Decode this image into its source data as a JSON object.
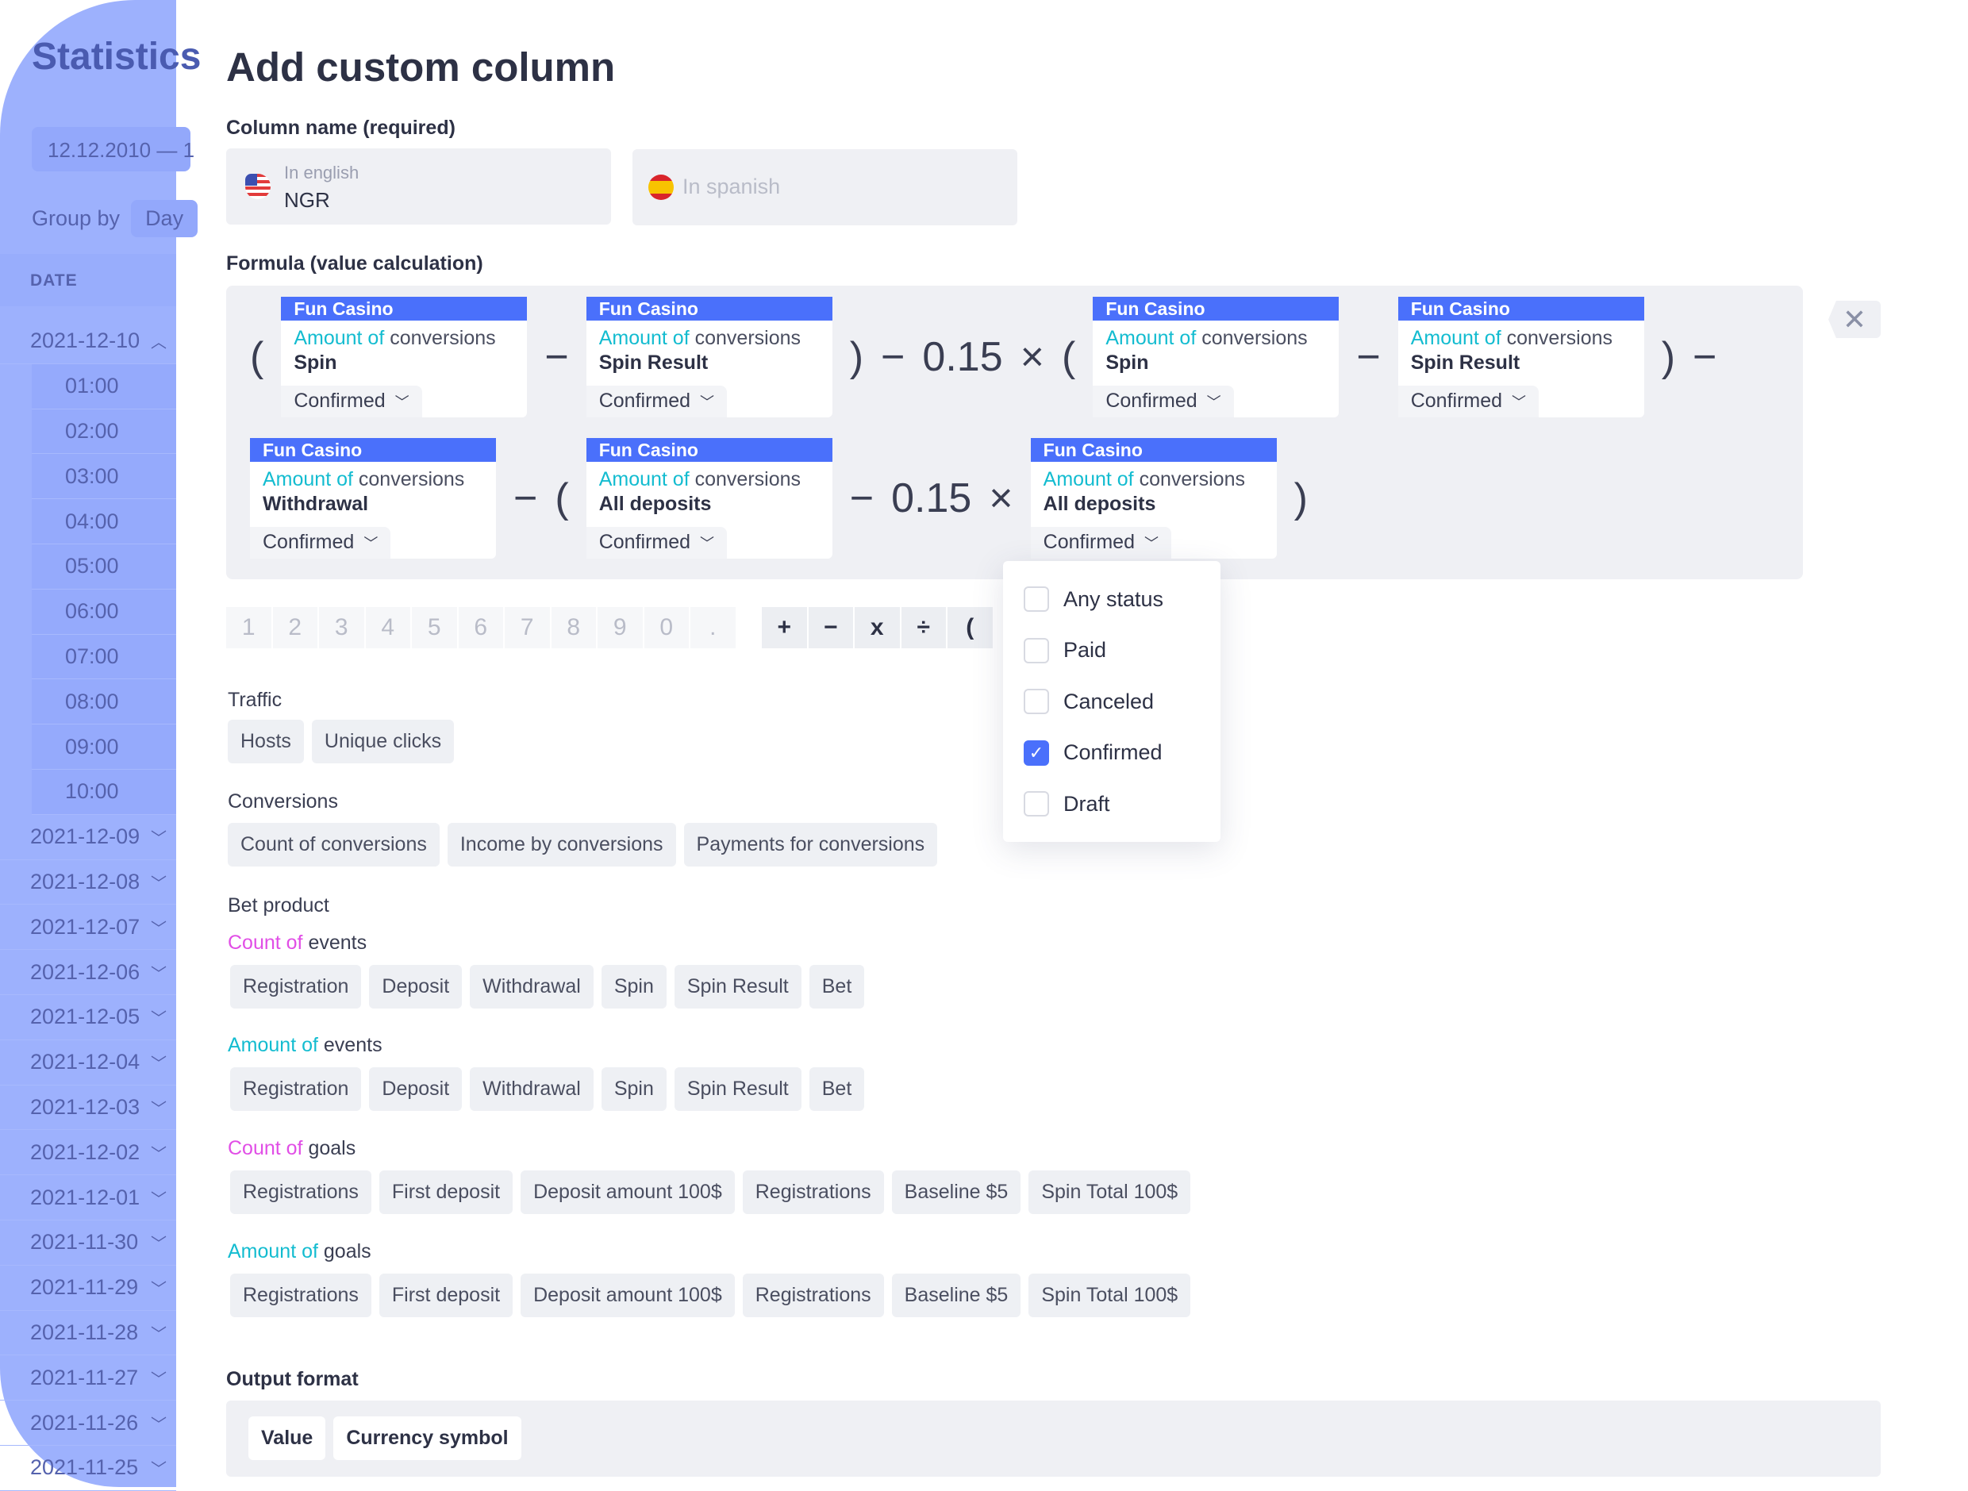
{
  "sidebar": {
    "title": "Statistics",
    "date_range": "12.12.2010 — 1",
    "group_by_label": "Group by",
    "group_by_value": "Day",
    "date_header": "DATE",
    "expanded_date": "2021-12-10",
    "hours": [
      "01:00",
      "02:00",
      "03:00",
      "04:00",
      "05:00",
      "06:00",
      "07:00",
      "08:00",
      "09:00",
      "10:00"
    ],
    "dates": [
      "2021-12-09",
      "2021-12-08",
      "2021-12-07",
      "2021-12-06",
      "2021-12-05",
      "2021-12-04",
      "2021-12-03",
      "2021-12-02",
      "2021-12-01",
      "2021-11-30",
      "2021-11-29",
      "2021-11-28",
      "2021-11-27",
      "2021-11-26",
      "2021-11-25"
    ]
  },
  "dialog": {
    "title": "Add custom column",
    "column_name_label": "Column name (required)",
    "english": {
      "label": "In english",
      "value": "NGR"
    },
    "spanish": {
      "placeholder": "In spanish"
    },
    "formula_label": "Formula (value calculation)",
    "formula_rows": [
      [
        {
          "op": "("
        },
        {
          "card": {
            "source": "Fun Casino",
            "prefix": "Amount of",
            "metric": "conversions",
            "item": "Spin",
            "status": "Confirmed"
          }
        },
        {
          "op": "−"
        },
        {
          "card": {
            "source": "Fun Casino",
            "prefix": "Amount of",
            "metric": "conversions",
            "item": "Spin Result",
            "status": "Confirmed"
          }
        },
        {
          "op": ")"
        },
        {
          "op": "−"
        },
        {
          "op": "0.15"
        },
        {
          "op": "×"
        },
        {
          "op": "("
        },
        {
          "card": {
            "source": "Fun Casino",
            "prefix": "Amount of",
            "metric": "conversions",
            "item": "Spin",
            "status": "Confirmed"
          }
        },
        {
          "op": "−"
        },
        {
          "card": {
            "source": "Fun Casino",
            "prefix": "Amount of",
            "metric": "conversions",
            "item": "Spin Result",
            "status": "Confirmed"
          }
        },
        {
          "op": ")"
        },
        {
          "op": "−"
        }
      ],
      [
        {
          "card": {
            "source": "Fun Casino",
            "prefix": "Amount of",
            "metric": "conversions",
            "item": "Withdrawal",
            "status": "Confirmed"
          }
        },
        {
          "op": "−"
        },
        {
          "op": "("
        },
        {
          "card": {
            "source": "Fun Casino",
            "prefix": "Amount of",
            "metric": "conversions",
            "item": "All deposits",
            "status": "Confirmed"
          }
        },
        {
          "op": "−"
        },
        {
          "op": "0.15"
        },
        {
          "op": "×"
        },
        {
          "card": {
            "source": "Fun Casino",
            "prefix": "Amount of",
            "metric": "conversions",
            "item": "All deposits",
            "status": "Confirmed"
          }
        },
        {
          "op": ")"
        }
      ]
    ],
    "clear_icon": "close-icon",
    "keypad": {
      "digits": [
        "1",
        "2",
        "3",
        "4",
        "5",
        "6",
        "7",
        "8",
        "9",
        "0",
        "."
      ],
      "operators": [
        "+",
        "−",
        "x",
        "÷",
        "("
      ]
    },
    "status_options": [
      {
        "label": "Any status",
        "checked": false
      },
      {
        "label": "Paid",
        "checked": false
      },
      {
        "label": "Canceled",
        "checked": false
      },
      {
        "label": "Confirmed",
        "checked": true
      },
      {
        "label": "Draft",
        "checked": false
      }
    ],
    "traffic": {
      "label": "Traffic",
      "chips": [
        "Hosts",
        "Unique clicks"
      ]
    },
    "conversions": {
      "label": "Conversions",
      "chips": [
        "Count of conversions",
        "Income by conversions",
        "Payments for conversions"
      ]
    },
    "bet_product": {
      "label": "Bet product",
      "groups": [
        {
          "prefix": "Count of",
          "suffix": "events",
          "color": "#e14ee6",
          "chips": [
            "Registration",
            "Deposit",
            "Withdrawal",
            "Spin",
            "Spin Result",
            "Bet"
          ]
        },
        {
          "prefix": "Amount of",
          "suffix": "events",
          "color": "#13bcd0",
          "chips": [
            "Registration",
            "Deposit",
            "Withdrawal",
            "Spin",
            "Spin Result",
            "Bet"
          ]
        },
        {
          "prefix": "Count of",
          "suffix": "goals",
          "color": "#e14ee6",
          "chips": [
            "Registrations",
            "First deposit",
            "Deposit amount 100$",
            "Registrations",
            "Baseline $5",
            "Spin Total 100$"
          ]
        },
        {
          "prefix": "Amount of",
          "suffix": "goals",
          "color": "#13bcd0",
          "chips": [
            "Registrations",
            "First deposit",
            "Deposit amount 100$",
            "Registrations",
            "Baseline $5",
            "Spin Total 100$"
          ]
        }
      ]
    },
    "output_format": {
      "label": "Output format",
      "chips": [
        "Value",
        "Currency symbol"
      ]
    }
  },
  "colors": {
    "accent": "#4a70fb",
    "amount": "#13bcd0",
    "count": "#e14ee6",
    "sidebar": "#9db1fd"
  }
}
